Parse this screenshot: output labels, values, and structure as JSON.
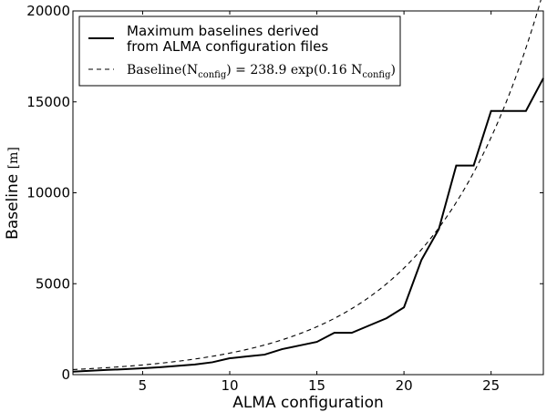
{
  "chart_data": {
    "type": "line",
    "title": "",
    "xlabel": "ALMA configuration",
    "ylabel_text": "Baseline",
    "ylabel_unit": "[m]",
    "xlim": [
      1,
      28
    ],
    "ylim": [
      0,
      20000
    ],
    "xticks": [
      5,
      10,
      15,
      20,
      25
    ],
    "yticks": [
      0,
      5000,
      10000,
      15000,
      20000
    ],
    "legend_position": "upper-left",
    "series": [
      {
        "name": "Maximum baselines derived from ALMA configuration files",
        "legend_lines": [
          "Maximum baselines derived",
          "from ALMA configuration files"
        ],
        "style": "solid",
        "x": [
          1,
          2,
          3,
          4,
          5,
          6,
          7,
          8,
          9,
          10,
          11,
          12,
          13,
          14,
          15,
          16,
          17,
          18,
          19,
          20,
          21,
          22,
          23,
          24,
          25,
          26,
          27,
          28
        ],
        "y": [
          160,
          210,
          260,
          300,
          350,
          410,
          480,
          560,
          680,
          900,
          1000,
          1100,
          1400,
          1600,
          1800,
          2300,
          2300,
          2700,
          3100,
          3700,
          6300,
          8000,
          11500,
          11500,
          14500,
          14500,
          14500,
          16300
        ]
      },
      {
        "name": "Baseline(N_config) = 238.9 exp(0.16 N_config)",
        "style": "dashed",
        "function": "exponential",
        "coefficient": 238.9,
        "rate": 0.16
      }
    ],
    "legend_fit": {
      "lhs_word": "Baseline",
      "variable": "N",
      "subscript": "config",
      "rhs_coefficient": "238.9",
      "rhs_function": "exp",
      "rhs_rate": "0.16"
    }
  }
}
